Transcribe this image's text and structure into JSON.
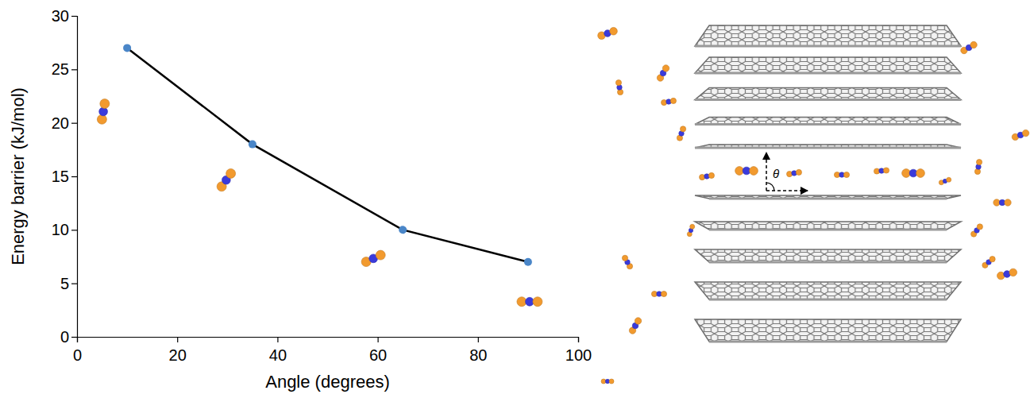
{
  "chart_data": {
    "type": "line",
    "x_label": "Angle (degrees)",
    "y_label": "Energy barrier (kJ/mol)",
    "x": [
      10,
      35,
      65,
      90
    ],
    "series": [
      {
        "color": "#4a86c8",
        "marker": "circle",
        "line_style": "solid",
        "values": [
          27,
          18,
          10,
          7
        ]
      }
    ],
    "xlim": [
      0,
      100
    ],
    "xticks": [
      0,
      20,
      40,
      60,
      80,
      100
    ],
    "ylim": [
      0,
      30
    ],
    "yticks": [
      0,
      5,
      10,
      15,
      20,
      25,
      30
    ],
    "grid": false
  },
  "illustration": {
    "angle_label": "θ"
  }
}
